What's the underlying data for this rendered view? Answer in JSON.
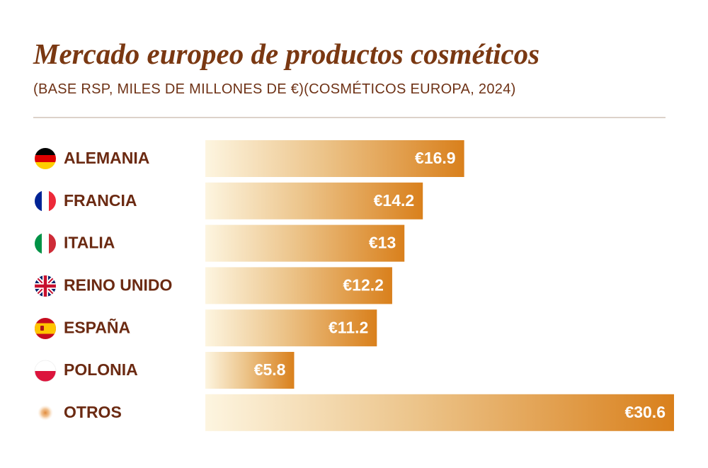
{
  "chart_data": {
    "type": "bar",
    "orientation": "horizontal",
    "title": "Mercado europeo de productos cosméticos",
    "subtitle": "(BASE RSP, MILES DE MILLONES DE €)(COSMÉTICOS EUROPA, 2024)",
    "categories": [
      "ALEMANIA",
      "FRANCIA",
      "ITALIA",
      "REINO UNIDO",
      "ESPAÑA",
      "POLONIA",
      "OTROS"
    ],
    "values": [
      16.9,
      14.2,
      13,
      12.2,
      11.2,
      5.8,
      30.6
    ],
    "value_labels": [
      "€16.9",
      "€14.2",
      "€13",
      "€12.2",
      "€11.2",
      "€5.8",
      "€30.6"
    ],
    "color": "#d9801c"
  }
}
